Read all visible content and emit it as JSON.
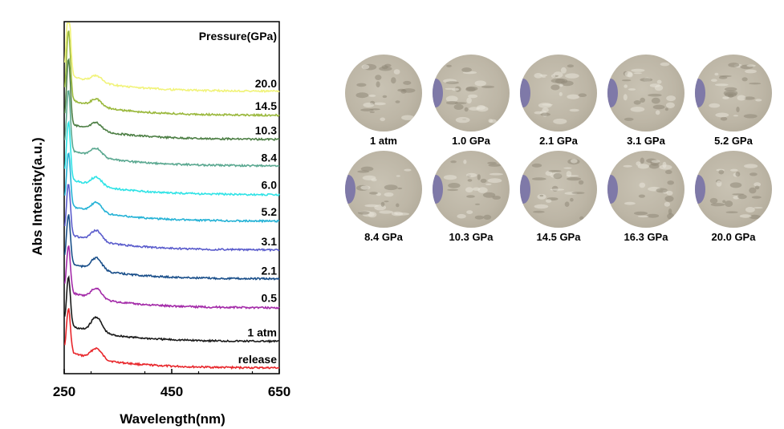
{
  "chart_data": {
    "type": "line",
    "xlabel": "Wavelength(nm)",
    "ylabel": "Abs Intensity(a.u.)",
    "xlim": [
      250,
      650
    ],
    "xticks": [
      "250",
      "450",
      "650"
    ],
    "legend_title": "Pressure(GPa)",
    "series": [
      {
        "name": "release",
        "color": "#e8262b",
        "offset": 0.0,
        "peak": 0.9,
        "hump": 0.22
      },
      {
        "name": "1 atm",
        "color": "#1a1a1a",
        "offset": 0.55,
        "peak": 1.0,
        "hump": 0.32
      },
      {
        "name": "0.5",
        "color": "#a32aa8",
        "offset": 1.25,
        "peak": 0.95,
        "hump": 0.22
      },
      {
        "name": "2.1",
        "color": "#1a4f8a",
        "offset": 1.85,
        "peak": 1.0,
        "hump": 0.25
      },
      {
        "name": "3.1",
        "color": "#5a5ccc",
        "offset": 2.45,
        "peak": 1.05,
        "hump": 0.22
      },
      {
        "name": "5.2",
        "color": "#24b2d6",
        "offset": 3.05,
        "peak": 1.1,
        "hump": 0.2
      },
      {
        "name": "6.0",
        "color": "#2fe3e6",
        "offset": 3.6,
        "peak": 1.2,
        "hump": 0.18
      },
      {
        "name": "8.4",
        "color": "#5aa890",
        "offset": 4.2,
        "peak": 1.25,
        "hump": 0.18
      },
      {
        "name": "10.3",
        "color": "#4d7f45",
        "offset": 4.75,
        "peak": 1.35,
        "hump": 0.16
      },
      {
        "name": "14.5",
        "color": "#9ab83c",
        "offset": 5.25,
        "peak": 1.45,
        "hump": 0.15
      },
      {
        "name": "20.0",
        "color": "#f1f37a",
        "offset": 5.75,
        "peak": 1.6,
        "hump": 0.14
      }
    ]
  },
  "photos": {
    "row1": [
      "1 atm",
      "1.0 GPa",
      "2.1 GPa",
      "3.1 GPa",
      "5.2 GPa"
    ],
    "row2": [
      "8.4 GPa",
      "10.3 GPa",
      "14.5 GPa",
      "16.3 GPa",
      "20.0 GPa"
    ]
  }
}
